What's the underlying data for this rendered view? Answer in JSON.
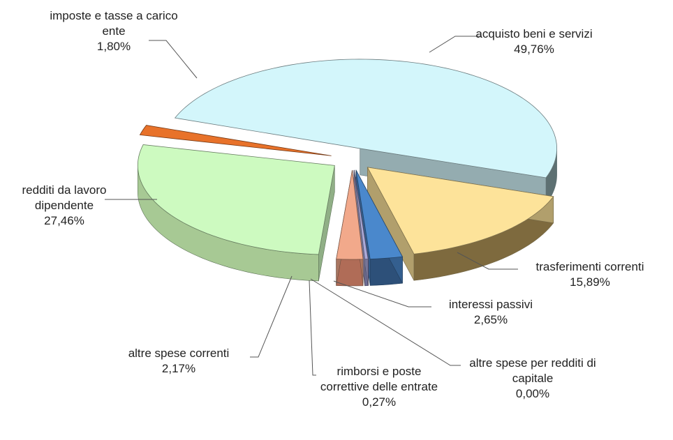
{
  "chart_data": {
    "type": "pie3d",
    "categories": [
      "acquisto beni e servizi",
      "trasferimenti correnti",
      "interessi passivi",
      "altre spese per redditi di capitale",
      "rimborsi e poste correttive delle entrate",
      "altre spese correnti",
      "redditi da lavoro dipendente",
      "imposte e tasse a carico ente"
    ],
    "values": [
      49.76,
      15.89,
      2.65,
      0.0,
      0.27,
      2.17,
      27.46,
      1.8
    ],
    "value_labels": [
      "49,76%",
      "15,89%",
      "2,65%",
      "0,00%",
      "0,27%",
      "2,17%",
      "27,46%",
      "1,80%"
    ],
    "colors": [
      "#d3f6fb",
      "#fde39a",
      "#4a88cc",
      "#8e6bb0",
      "#aaa9d8",
      "#f2a98b",
      "#cdfac0",
      "#e8722a"
    ]
  }
}
